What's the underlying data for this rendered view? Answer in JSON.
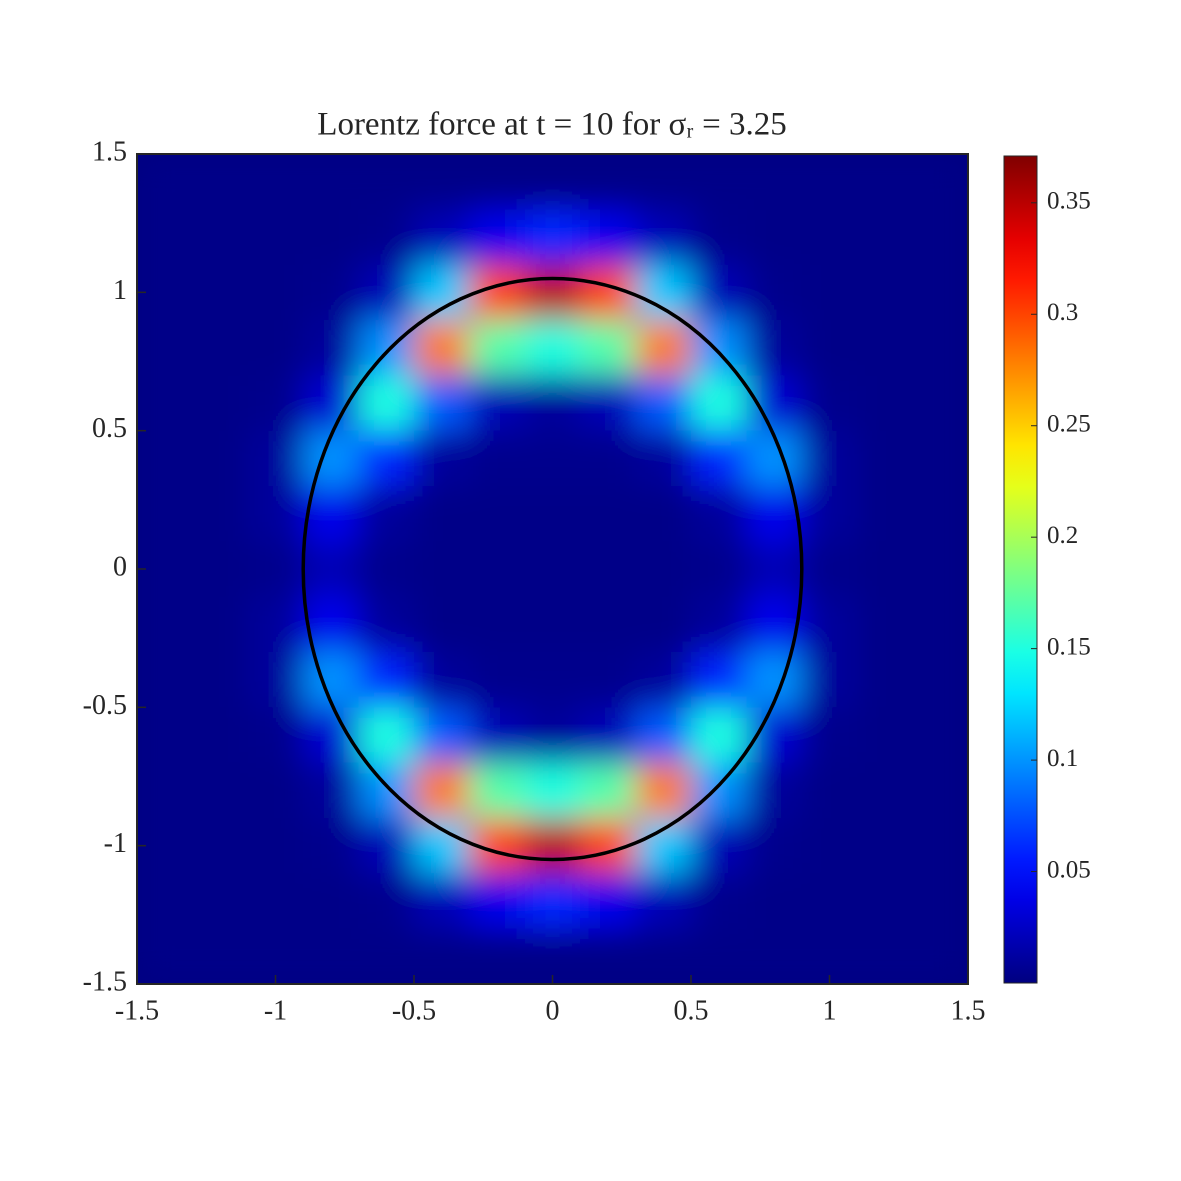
{
  "chart_data": {
    "type": "heatmap",
    "title": "Lorentz force at t = 10 for σᵣ = 3.25",
    "x": [
      -1.4,
      -1.2,
      -1.0,
      -0.8,
      -0.6,
      -0.4,
      -0.2,
      0,
      0.2,
      0.4,
      0.6,
      0.8,
      1.0,
      1.2,
      1.4
    ],
    "y": [
      1.4,
      1.2,
      1.0,
      0.8,
      0.6,
      0.4,
      0.2,
      0,
      -0.2,
      -0.4,
      -0.6,
      -0.8,
      -1.0,
      -1.2,
      -1.4
    ],
    "z": [
      [
        0.003,
        0.003,
        0.003,
        0.003,
        0.003,
        0.003,
        0.003,
        0.003,
        0.003,
        0.003,
        0.003,
        0.003,
        0.003,
        0.003,
        0.003
      ],
      [
        0.003,
        0.003,
        0.003,
        0.003,
        0.005,
        0.02,
        0.04,
        0.06,
        0.04,
        0.02,
        0.005,
        0.003,
        0.003,
        0.003,
        0.003
      ],
      [
        0.003,
        0.003,
        0.003,
        0.005,
        0.02,
        0.12,
        0.3,
        0.35,
        0.3,
        0.12,
        0.02,
        0.005,
        0.003,
        0.003,
        0.003
      ],
      [
        0.003,
        0.003,
        0.003,
        0.01,
        0.1,
        0.28,
        0.17,
        0.15,
        0.17,
        0.28,
        0.1,
        0.01,
        0.003,
        0.003,
        0.003
      ],
      [
        0.003,
        0.003,
        0.005,
        0.03,
        0.15,
        0.08,
        0.02,
        0.01,
        0.02,
        0.08,
        0.15,
        0.03,
        0.005,
        0.003,
        0.003
      ],
      [
        0.003,
        0.003,
        0.01,
        0.1,
        0.06,
        0.01,
        0.005,
        0.005,
        0.005,
        0.01,
        0.06,
        0.1,
        0.01,
        0.003,
        0.003
      ],
      [
        0.003,
        0.003,
        0.01,
        0.04,
        0.01,
        0.003,
        0.003,
        0.003,
        0.003,
        0.003,
        0.01,
        0.04,
        0.01,
        0.003,
        0.003
      ],
      [
        0.003,
        0.003,
        0.005,
        0.02,
        0.005,
        0.003,
        0.003,
        0.003,
        0.003,
        0.003,
        0.005,
        0.02,
        0.005,
        0.003,
        0.003
      ],
      [
        0.003,
        0.003,
        0.01,
        0.04,
        0.01,
        0.003,
        0.003,
        0.003,
        0.003,
        0.003,
        0.01,
        0.04,
        0.01,
        0.003,
        0.003
      ],
      [
        0.003,
        0.003,
        0.01,
        0.1,
        0.06,
        0.01,
        0.005,
        0.005,
        0.005,
        0.01,
        0.06,
        0.1,
        0.01,
        0.003,
        0.003
      ],
      [
        0.003,
        0.003,
        0.005,
        0.03,
        0.15,
        0.08,
        0.02,
        0.01,
        0.02,
        0.08,
        0.15,
        0.03,
        0.005,
        0.003,
        0.003
      ],
      [
        0.003,
        0.003,
        0.003,
        0.01,
        0.1,
        0.28,
        0.17,
        0.15,
        0.17,
        0.28,
        0.1,
        0.01,
        0.003,
        0.003,
        0.003
      ],
      [
        0.003,
        0.003,
        0.003,
        0.005,
        0.02,
        0.12,
        0.3,
        0.35,
        0.3,
        0.12,
        0.02,
        0.005,
        0.003,
        0.003,
        0.003
      ],
      [
        0.003,
        0.003,
        0.003,
        0.003,
        0.005,
        0.02,
        0.04,
        0.06,
        0.04,
        0.02,
        0.005,
        0.003,
        0.003,
        0.003,
        0.003
      ],
      [
        0.003,
        0.003,
        0.003,
        0.003,
        0.003,
        0.003,
        0.003,
        0.003,
        0.003,
        0.003,
        0.003,
        0.003,
        0.003,
        0.003,
        0.003
      ]
    ],
    "colormap": "jet",
    "clim": [
      0,
      0.371
    ],
    "cticks": [
      0.05,
      0.1,
      0.15,
      0.2,
      0.25,
      0.3,
      0.35
    ],
    "ellipse": {
      "rx": 0.9,
      "ry": 1.05,
      "color": "#000000"
    },
    "xlim": [
      -1.5,
      1.5
    ],
    "xticks": [
      -1.5,
      -1,
      -0.5,
      0,
      0.5,
      1,
      1.5
    ],
    "ylim": [
      -1.5,
      1.5
    ],
    "yticks": [
      -1.5,
      -1,
      -0.5,
      0,
      0.5,
      1,
      1.5
    ],
    "grid": false
  }
}
